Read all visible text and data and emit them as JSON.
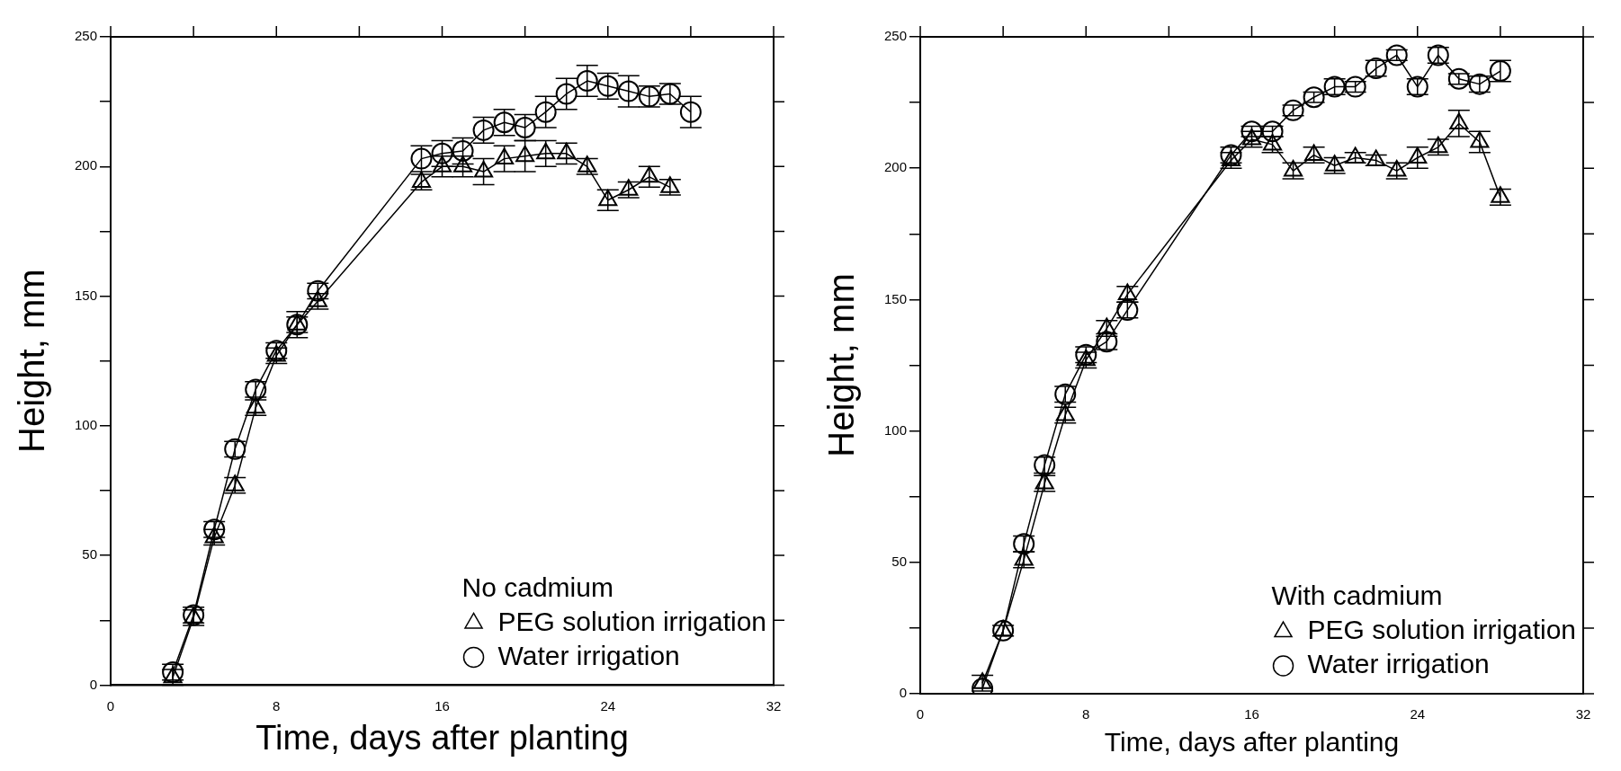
{
  "chart_data": [
    {
      "type": "line",
      "xlabel": "Time, days after planting",
      "ylabel": "Height, mm",
      "legend_title": "No cadmium",
      "legend": "bottom right",
      "xlim": [
        0,
        32
      ],
      "xticks": [
        0,
        {
          "value": 4,
          "label": null
        },
        8,
        {
          "value": 12,
          "label": null
        },
        16,
        {
          "value": 20,
          "label": null
        },
        24,
        {
          "value": 28,
          "label": null
        },
        32
      ],
      "ylim": [
        0,
        250
      ],
      "yticks": [
        0,
        {
          "value": 25,
          "label": null
        },
        50,
        {
          "value": 75,
          "label": null
        },
        100,
        {
          "value": 125,
          "label": null
        },
        150,
        {
          "value": 175,
          "label": null
        },
        200,
        {
          "value": 225,
          "label": null
        },
        250
      ],
      "series": [
        {
          "name": "PEG solution irrigation",
          "color": "#000000",
          "marker": "triangle",
          "x": [
            3,
            4,
            5,
            6,
            7,
            8,
            9,
            10,
            15,
            16,
            17,
            18,
            19,
            20,
            21,
            22,
            23,
            24,
            25,
            26,
            27
          ],
          "values": [
            3,
            26,
            57,
            77,
            107,
            127,
            139,
            148,
            194,
            200,
            200,
            198,
            203,
            204,
            205,
            205,
            200,
            187,
            191,
            196,
            192
          ],
          "errors": [
            3,
            3,
            3,
            3,
            3,
            3,
            3,
            3,
            3,
            4,
            4,
            5,
            5,
            6,
            5,
            4,
            3,
            4,
            3,
            4,
            3
          ]
        },
        {
          "name": "Water irrigation",
          "color": "#000000",
          "marker": "circle",
          "x": [
            3,
            4,
            5,
            6,
            7,
            8,
            9,
            10,
            15,
            16,
            17,
            18,
            19,
            20,
            21,
            22,
            23,
            24,
            25,
            26,
            27,
            28
          ],
          "values": [
            5,
            27,
            60,
            91,
            114,
            129,
            139,
            152,
            203,
            205,
            206,
            214,
            217,
            215,
            221,
            228,
            233,
            231,
            229,
            227,
            228,
            221
          ],
          "errors": [
            3,
            3,
            3,
            3,
            3,
            3,
            5,
            3,
            5,
            5,
            5,
            5,
            5,
            5,
            6,
            6,
            6,
            5,
            6,
            4,
            4,
            6
          ]
        }
      ]
    },
    {
      "type": "line",
      "xlabel": "Time, days after planting",
      "ylabel": "Height, mm",
      "legend_title": "With cadmium",
      "legend": "bottom right",
      "xlim": [
        0,
        32
      ],
      "xticks": [
        0,
        {
          "value": 4,
          "label": null
        },
        8,
        {
          "value": 12,
          "label": null
        },
        16,
        {
          "value": 20,
          "label": null
        },
        24,
        {
          "value": 28,
          "label": null
        },
        32
      ],
      "ylim": [
        0,
        250
      ],
      "yticks": [
        0,
        {
          "value": 25,
          "label": null
        },
        50,
        {
          "value": 75,
          "label": null
        },
        100,
        {
          "value": 125,
          "label": null
        },
        150,
        {
          "value": 175,
          "label": null
        },
        200,
        {
          "value": 225,
          "label": null
        },
        250
      ],
      "series": [
        {
          "name": "PEG solution irrigation",
          "color": "#000000",
          "marker": "triangle",
          "x": [
            3,
            4,
            5,
            6,
            7,
            8,
            9,
            10,
            15,
            16,
            17,
            18,
            19,
            20,
            21,
            22,
            23,
            24,
            25,
            26,
            27,
            28
          ],
          "values": [
            4,
            24,
            51,
            80,
            106,
            127,
            139,
            152,
            203,
            211,
            209,
            199,
            205,
            201,
            204,
            203,
            199,
            204,
            208,
            217,
            210,
            189
          ],
          "errors": [
            3,
            2,
            3,
            3,
            3,
            3,
            3,
            3,
            3,
            3,
            3,
            3,
            3,
            3,
            2,
            2,
            3,
            4,
            3,
            5,
            4,
            3
          ]
        },
        {
          "name": "Water irrigation",
          "color": "#000000",
          "marker": "circle",
          "x": [
            3,
            4,
            5,
            6,
            7,
            8,
            9,
            10,
            15,
            16,
            17,
            18,
            19,
            20,
            21,
            22,
            23,
            24,
            25,
            26,
            27,
            28
          ],
          "values": [
            2,
            24,
            57,
            87,
            114,
            129,
            134,
            146,
            205,
            214,
            214,
            222,
            227,
            231,
            231,
            238,
            243,
            231,
            243,
            234,
            232,
            237
          ],
          "errors": [
            null,
            null,
            3,
            3,
            3,
            3,
            3,
            3,
            3,
            2,
            2,
            2,
            2,
            3,
            2,
            3,
            2,
            3,
            3,
            2,
            3,
            4
          ]
        }
      ]
    }
  ]
}
